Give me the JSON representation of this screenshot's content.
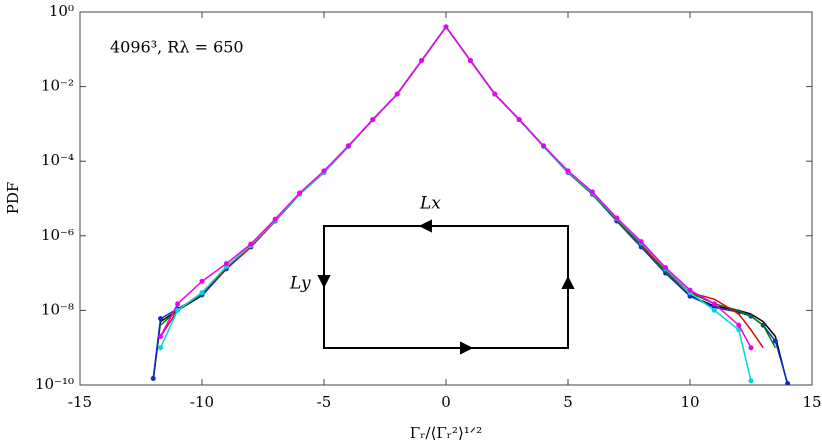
{
  "chart_data": {
    "type": "line",
    "log_y": true,
    "grid": false,
    "ylabel": "PDF",
    "xlabel": "Γᵣ/⟨Γᵣ²⟩¹ᐟ²",
    "annotation": "4096³, Rλ = 650",
    "inset_labels": [
      "Lx",
      "Ly"
    ],
    "xlim": [
      -15,
      15
    ],
    "xticks": [
      -15,
      -10,
      -5,
      0,
      5,
      10,
      15
    ],
    "ylim": [
      1e-10,
      1
    ],
    "yticks": [
      {
        "value": 1e-10,
        "label": "10⁻¹⁰"
      },
      {
        "value": 1e-08,
        "label": "10⁻⁸"
      },
      {
        "value": 1e-06,
        "label": "10⁻⁶"
      },
      {
        "value": 0.0001,
        "label": "10⁻⁴"
      },
      {
        "value": 0.01,
        "label": "10⁻²"
      },
      {
        "value": 1,
        "label": "10⁰"
      }
    ],
    "x": [
      -12,
      -11.7,
      -11,
      -10,
      -9,
      -8,
      -7,
      -6,
      -5,
      -4,
      -3,
      -2,
      -1,
      0,
      1,
      2,
      3,
      4,
      5,
      6,
      7,
      8,
      9,
      10,
      11,
      12,
      12.5,
      13,
      13.5,
      14
    ],
    "series": [
      {
        "color": "#000000",
        "markers": false,
        "values": [
          1.3e-10,
          5e-09,
          1e-08,
          2.5e-08,
          1.3e-07,
          5e-07,
          2.5e-06,
          1.3e-05,
          5e-05,
          0.00025,
          0.0013,
          0.0063,
          0.05,
          0.4,
          0.05,
          0.0063,
          0.0013,
          0.00025,
          5e-05,
          1.3e-05,
          2.5e-06,
          5e-07,
          1e-07,
          2.5e-08,
          1.3e-08,
          1e-08,
          8e-09,
          5e-09,
          2e-09,
          1e-10
        ]
      },
      {
        "color": "#1030c0",
        "markers": true,
        "values": [
          1.5e-10,
          6e-09,
          1.1e-08,
          2.6e-08,
          1.3e-07,
          5e-07,
          2.5e-06,
          1.3e-05,
          5e-05,
          0.00025,
          0.0013,
          0.0063,
          0.05,
          0.4,
          0.05,
          0.0063,
          0.0013,
          0.00025,
          5e-05,
          1.3e-05,
          2.5e-06,
          5e-07,
          1e-07,
          2.4e-08,
          1.2e-08,
          9e-09,
          7e-09,
          4e-09,
          1.5e-09,
          1.1e-10
        ]
      },
      {
        "color": "#008000",
        "markers": false,
        "values": [
          null,
          4e-09,
          1e-08,
          2.8e-08,
          1.4e-07,
          5e-07,
          2.5e-06,
          1.3e-05,
          5e-05,
          0.00025,
          0.0013,
          0.0063,
          0.05,
          0.4,
          0.05,
          0.0063,
          0.0013,
          0.00025,
          5e-05,
          1.3e-05,
          2.6e-06,
          5.5e-07,
          1.1e-07,
          3e-08,
          1.5e-08,
          1e-08,
          7e-09,
          4e-09,
          1e-09,
          null
        ]
      },
      {
        "color": "#ee0000",
        "markers": false,
        "values": [
          null,
          2e-09,
          1e-08,
          3e-08,
          1.4e-07,
          5e-07,
          2.5e-06,
          1.3e-05,
          5e-05,
          0.00025,
          0.0013,
          0.0063,
          0.05,
          0.4,
          0.05,
          0.0063,
          0.0013,
          0.00025,
          5.2e-05,
          1.4e-05,
          2.8e-06,
          6e-07,
          1.2e-07,
          3e-08,
          2e-08,
          8e-09,
          3e-09,
          1e-09,
          null,
          null
        ]
      },
      {
        "color": "#00d8d8",
        "markers": true,
        "values": [
          null,
          1e-09,
          1e-08,
          3e-08,
          1.5e-07,
          5.5e-07,
          2.6e-06,
          1.3e-05,
          5e-05,
          0.00025,
          0.0013,
          0.0063,
          0.05,
          0.4,
          0.05,
          0.0063,
          0.0013,
          0.00025,
          5.2e-05,
          1.4e-05,
          2.9e-06,
          6.5e-07,
          1.3e-07,
          3e-08,
          1e-08,
          3e-09,
          1.3e-10,
          null,
          null,
          null
        ]
      },
      {
        "color": "#ee00ee",
        "markers": true,
        "values": [
          null,
          2e-09,
          1.5e-08,
          6e-08,
          1.8e-07,
          6e-07,
          2.8e-06,
          1.4e-05,
          5.5e-05,
          0.00026,
          0.0013,
          0.0063,
          0.05,
          0.4,
          0.05,
          0.0063,
          0.0013,
          0.00026,
          5.5e-05,
          1.5e-05,
          3e-06,
          7e-07,
          1.4e-07,
          3.5e-08,
          1.5e-08,
          4e-09,
          1e-09,
          null,
          null,
          null
        ]
      }
    ]
  }
}
